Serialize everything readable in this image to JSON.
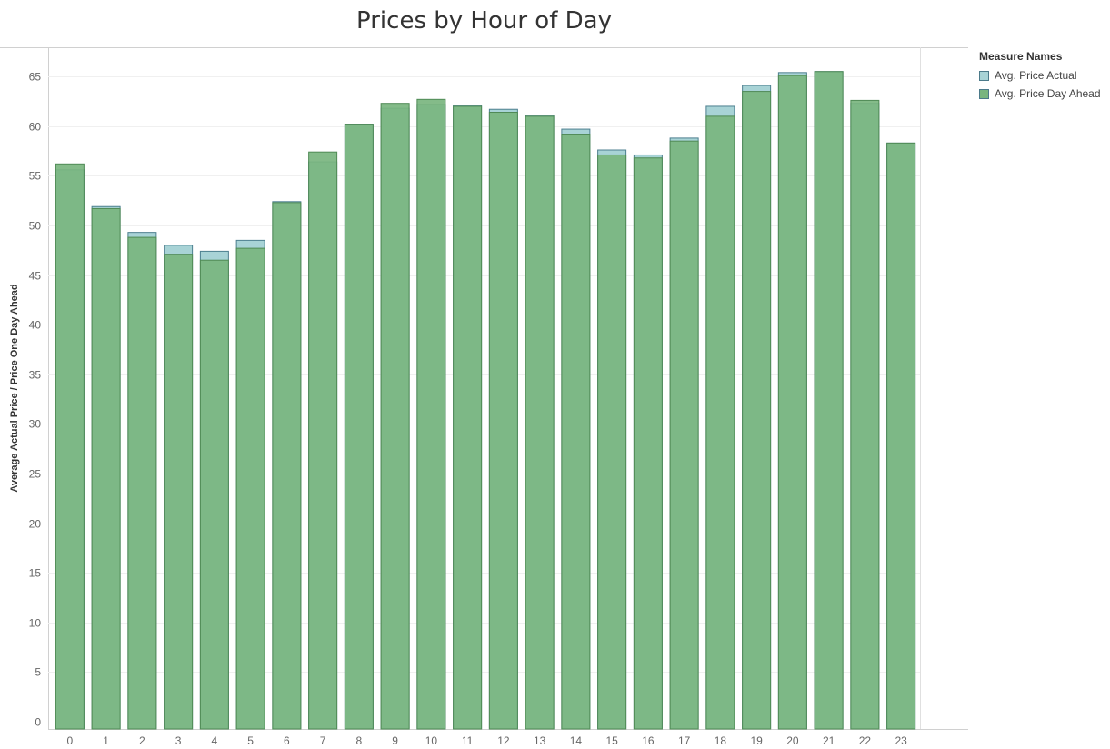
{
  "chart_data": {
    "type": "bar",
    "title": "Prices by Hour of Day",
    "xlabel": "",
    "ylabel": "Average Actual Price / Price One Day Ahead",
    "ylim": [
      0,
      69
    ],
    "yticks": [
      0,
      5,
      10,
      15,
      20,
      25,
      30,
      35,
      40,
      45,
      50,
      55,
      60,
      65
    ],
    "grid": true,
    "legend_placement": "right",
    "legend_title": "Measure Names",
    "categories": [
      "0",
      "1",
      "2",
      "3",
      "4",
      "5",
      "6",
      "7",
      "8",
      "9",
      "10",
      "11",
      "12",
      "13",
      "14",
      "15",
      "16",
      "17",
      "18",
      "19",
      "20",
      "21",
      "22",
      "23"
    ],
    "series": [
      {
        "name": "Avg. Price Actual",
        "color": "#a8d3d6",
        "values": [
          55.6,
          51.9,
          49.3,
          48.0,
          47.4,
          48.5,
          52.4,
          56.4,
          60.2,
          61.8,
          62.2,
          62.1,
          61.7,
          61.1,
          59.7,
          57.6,
          57.1,
          58.8,
          62.0,
          64.1,
          65.4,
          65.5,
          62.3,
          58.3
        ]
      },
      {
        "name": "Avg. Price Day Ahead",
        "color": "#79b57f",
        "values": [
          56.2,
          51.7,
          48.8,
          47.1,
          46.5,
          47.7,
          52.3,
          57.4,
          60.2,
          62.3,
          62.7,
          62.0,
          61.4,
          61.0,
          59.2,
          57.1,
          56.8,
          58.5,
          61.0,
          63.5,
          65.1,
          65.5,
          62.6,
          58.3
        ]
      }
    ]
  }
}
